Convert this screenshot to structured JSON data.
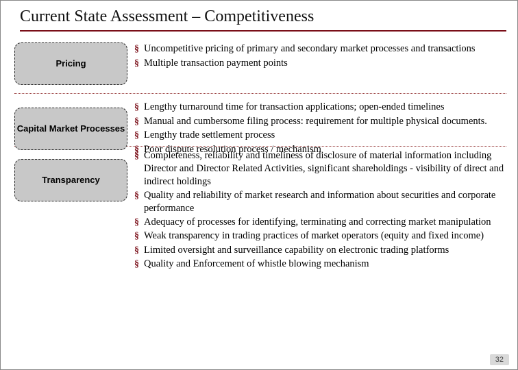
{
  "title": "Current State Assessment – Competitiveness",
  "sections": [
    {
      "label": "Pricing",
      "bullets": [
        "Uncompetitive pricing of primary and secondary market processes and transactions",
        "Multiple transaction payment points"
      ]
    },
    {
      "label": "Capital Market Processes",
      "bullets": [
        "Lengthy turnaround time for transaction applications; open-ended timelines",
        "Manual and cumbersome filing process: requirement for multiple physical documents.",
        "Lengthy trade settlement process",
        "Poor dispute resolution process / mechanism"
      ]
    },
    {
      "label": "Transparency",
      "bullets": [
        "Completeness, reliability and timeliness of disclosure of material information including Director and Director Related Activities, significant shareholdings - visibility of direct and indirect holdings",
        "Quality and reliability of market research and information about securities and corporate performance",
        "Adequacy of processes for identifying, terminating and correcting market manipulation",
        "Weak transparency in trading practices of market operators (equity and fixed income)",
        "Limited oversight and surveillance capability on electronic trading platforms",
        "Quality and Enforcement of whistle blowing mechanism"
      ]
    }
  ],
  "pageNumber": "32",
  "colors": {
    "accent": "#7a0e18",
    "boxFill": "#c8c8c8",
    "divider": "#9a3f3f"
  }
}
